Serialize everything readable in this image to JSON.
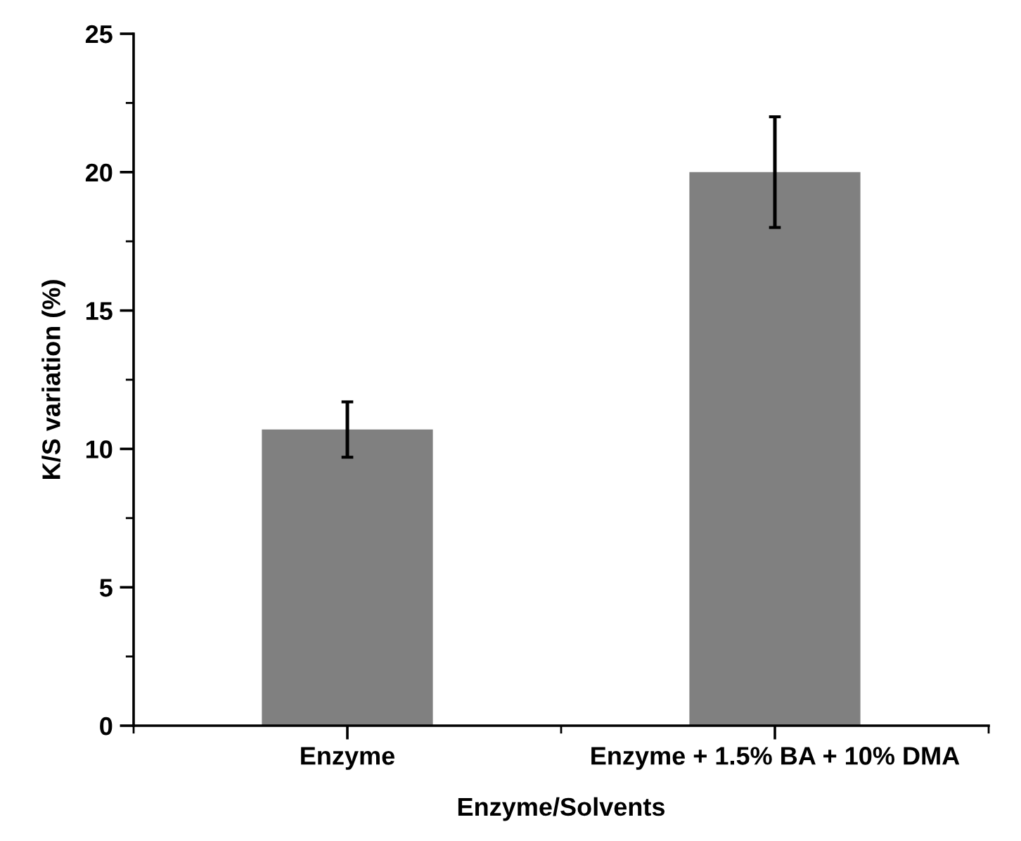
{
  "chart_data": {
    "type": "bar",
    "xlabel": "Enzyme/Solvents",
    "ylabel": "K/S variation (%)",
    "categories": [
      "Enzyme",
      "Enzyme + 1.5% BA + 10% DMA"
    ],
    "values": [
      10.7,
      20.0
    ],
    "errors": [
      1.0,
      2.0
    ],
    "color": "#808080",
    "ylim": [
      0,
      25
    ],
    "yticks": [
      0,
      5,
      10,
      15,
      20,
      25
    ],
    "grid": false,
    "legend": false
  }
}
